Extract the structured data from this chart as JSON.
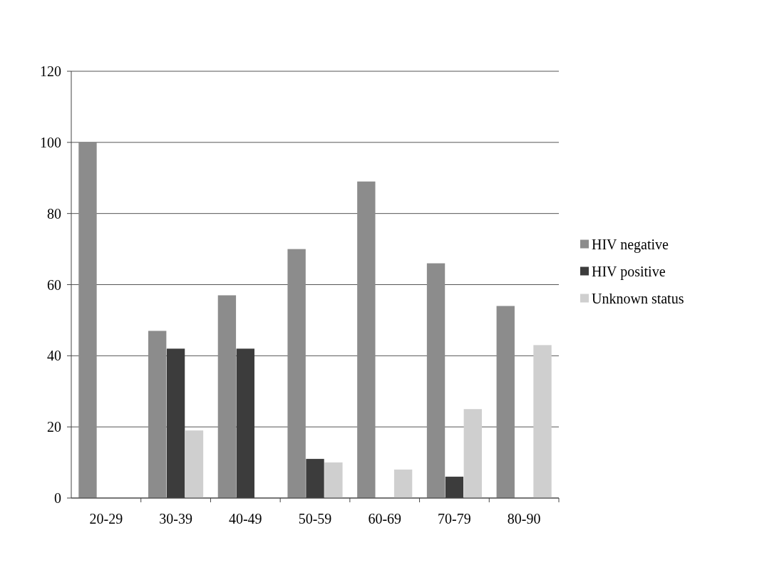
{
  "chart_data": {
    "type": "bar",
    "categories": [
      "20-29",
      "30-39",
      "40-49",
      "50-59",
      "60-69",
      "70-79",
      "80-90"
    ],
    "series": [
      {
        "name": "HIV negative",
        "color": "#8c8c8c",
        "values": [
          100,
          47,
          57,
          70,
          89,
          66,
          54
        ]
      },
      {
        "name": "HIV positive",
        "color": "#3c3c3c",
        "values": [
          0,
          42,
          42,
          11,
          0,
          6,
          0
        ]
      },
      {
        "name": "Unknown status",
        "color": "#cfcfcf",
        "values": [
          0,
          19,
          0,
          10,
          8,
          25,
          43
        ]
      }
    ],
    "ylim": [
      0,
      120
    ],
    "yticks": [
      0,
      20,
      40,
      60,
      80,
      100,
      120
    ],
    "grid": "y",
    "legend": "right"
  }
}
